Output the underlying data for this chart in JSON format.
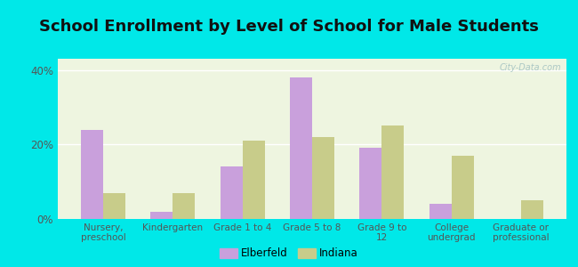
{
  "title": "School Enrollment by Level of School for Male Students",
  "categories": [
    "Nursery,\npreschool",
    "Kindergarten",
    "Grade 1 to 4",
    "Grade 5 to 8",
    "Grade 9 to\n12",
    "College\nundergrad",
    "Graduate or\nprofessional"
  ],
  "elberfeld": [
    24.0,
    2.0,
    14.0,
    38.0,
    19.0,
    4.0,
    0.0
  ],
  "indiana": [
    7.0,
    7.0,
    21.0,
    22.0,
    25.0,
    17.0,
    5.0
  ],
  "elberfeld_color": "#c9a0dc",
  "indiana_color": "#c8cc8a",
  "background_outer": "#00e8e8",
  "background_inner": "#eef5e0",
  "title_fontsize": 13,
  "title_color": "#111111",
  "legend_labels": [
    "Elberfeld",
    "Indiana"
  ],
  "ylim": [
    0,
    43
  ],
  "yticks": [
    0,
    20,
    40
  ],
  "ytick_labels": [
    "0%",
    "20%",
    "40%"
  ],
  "bar_width": 0.32,
  "tick_color": "#555555",
  "watermark": "City-Data.com",
  "watermark_color": "#a0c0c0"
}
